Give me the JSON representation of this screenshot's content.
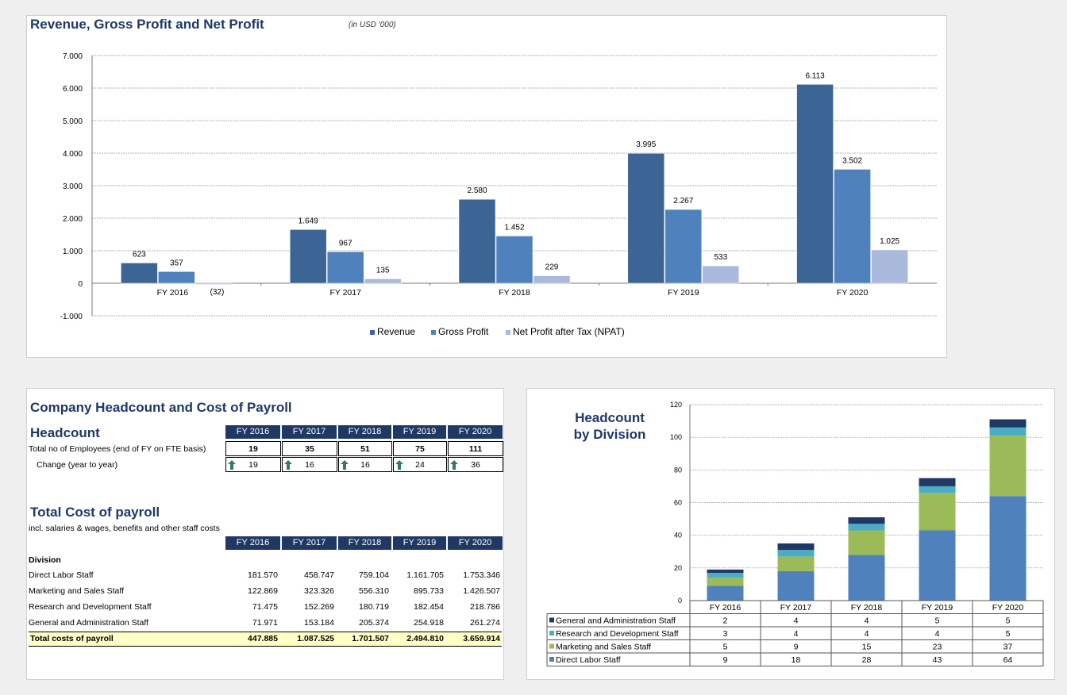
{
  "revenue_chart": {
    "title": "Revenue, Gross Profit and Net Profit",
    "subtitle": "(in USD '000)"
  },
  "headcount_chart_title": [
    "Headcount",
    "by Division"
  ],
  "payroll_panel": {
    "title": "Company Headcount and Cost of Payroll",
    "headcount_heading": "Headcount",
    "years": [
      "FY 2016",
      "FY 2017",
      "FY 2018",
      "FY 2019",
      "FY 2020"
    ],
    "total_employees_label": "Total no of Employees (end of FY on FTE basis)",
    "total_employees": [
      "19",
      "35",
      "51",
      "75",
      "111"
    ],
    "change_label": "Change  (year to year)",
    "change": [
      "19",
      "16",
      "16",
      "24",
      "36"
    ],
    "cost_heading": "Total Cost of payroll",
    "cost_subheading": "incl. salaries & wages, benefits and other staff costs",
    "division_label": "Division",
    "rows": [
      {
        "label": "Direct Labor Staff",
        "values": [
          "181.570",
          "458.747",
          "759.104",
          "1.161.705",
          "1.753.346"
        ]
      },
      {
        "label": "Marketing and Sales Staff",
        "values": [
          "122.869",
          "323.326",
          "556.310",
          "895.733",
          "1.426.507"
        ]
      },
      {
        "label": "Research and Development Staff",
        "values": [
          "71.475",
          "152.269",
          "180.719",
          "182.454",
          "218.786"
        ]
      },
      {
        "label": "General and Administration Staff",
        "values": [
          "71.971",
          "153.184",
          "205.374",
          "254.918",
          "261.274"
        ]
      }
    ],
    "total_label": "Total costs of payroll",
    "totals": [
      "447.885",
      "1.087.525",
      "1.701.507",
      "2.494.810",
      "3.659.914"
    ],
    "arrow_color": "#2e7d5b"
  },
  "chart_data": [
    {
      "type": "bar",
      "title": "Revenue, Gross Profit and Net Profit",
      "subtitle": "(in USD '000)",
      "categories": [
        "FY 2016",
        "FY 2017",
        "FY 2018",
        "FY 2019",
        "FY 2020"
      ],
      "series": [
        {
          "name": "Revenue",
          "color": "#3c6596",
          "values": [
            623,
            1649,
            2580,
            3995,
            6113
          ],
          "labels": [
            "623",
            "1.649",
            "2.580",
            "3.995",
            "6.113"
          ]
        },
        {
          "name": "Gross Profit",
          "color": "#4f81bd",
          "values": [
            357,
            967,
            1452,
            2267,
            3502
          ],
          "labels": [
            "357",
            "967",
            "1.452",
            "2.267",
            "3.502"
          ]
        },
        {
          "name": "Net Profit after Tax (NPAT)",
          "color": "#a8b9dc",
          "values": [
            -32,
            135,
            229,
            533,
            1025
          ],
          "labels": [
            "(32)",
            "135",
            "229",
            "533",
            "1.025"
          ]
        }
      ],
      "ylim": [
        -1000,
        7000
      ],
      "yticks": [
        -1000,
        0,
        1000,
        2000,
        3000,
        4000,
        5000,
        6000,
        7000
      ],
      "ytick_labels": [
        "-1.000",
        "0",
        "1.000",
        "2.000",
        "3.000",
        "4.000",
        "5.000",
        "6.000",
        "7.000"
      ],
      "grid": true,
      "legend_position": "bottom"
    },
    {
      "type": "bar",
      "stacked": true,
      "title": "Headcount by Division",
      "categories": [
        "FY 2016",
        "FY 2017",
        "FY 2018",
        "FY 2019",
        "FY 2020"
      ],
      "series": [
        {
          "name": "Direct Labor Staff",
          "color": "#4f81bd",
          "values": [
            9,
            18,
            28,
            43,
            64
          ]
        },
        {
          "name": "Marketing and Sales Staff",
          "color": "#9bbb59",
          "values": [
            5,
            9,
            15,
            23,
            37
          ]
        },
        {
          "name": "Research and Development Staff",
          "color": "#4bacc6",
          "values": [
            3,
            4,
            4,
            4,
            5
          ]
        },
        {
          "name": "General and Administration Staff",
          "color": "#1f3864",
          "values": [
            2,
            4,
            4,
            5,
            5
          ]
        }
      ],
      "ylim": [
        0,
        120
      ],
      "yticks": [
        0,
        20,
        40,
        60,
        80,
        100,
        120
      ],
      "grid": true,
      "legend_position": "data-table"
    }
  ]
}
